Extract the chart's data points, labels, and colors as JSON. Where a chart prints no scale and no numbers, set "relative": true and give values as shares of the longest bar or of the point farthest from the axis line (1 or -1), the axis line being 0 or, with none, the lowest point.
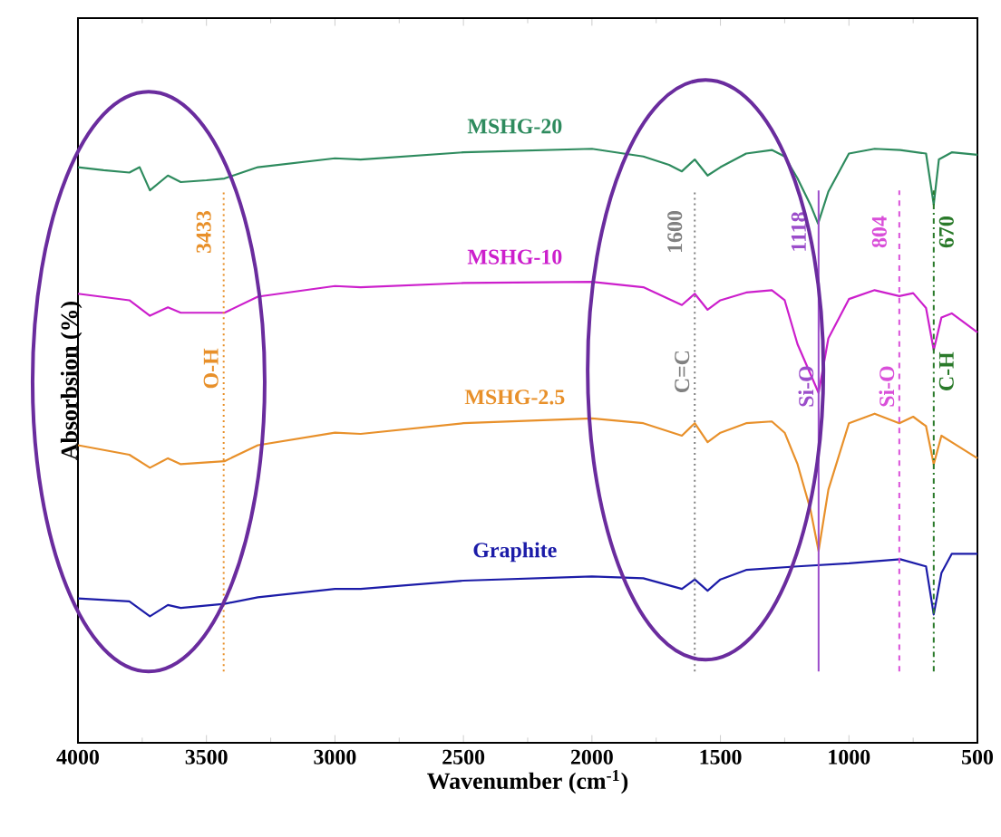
{
  "chart_data": {
    "type": "line",
    "relative": true,
    "xlabel": "Wavenumber (cm$^{-1}$)",
    "ylabel": "Absorbsion (%)",
    "xlim": [
      4000,
      500
    ],
    "xticks": [
      4000,
      3500,
      3000,
      2500,
      2000,
      1500,
      1000,
      500
    ],
    "tick_labels": "x",
    "grid": false,
    "legend": false,
    "marker": "none",
    "line_style": "solid",
    "series": [
      {
        "name": "MSHG-20",
        "color": "#2e8b5e",
        "x": [
          4000,
          3900,
          3800,
          3760,
          3720,
          3650,
          3600,
          3500,
          3430,
          3300,
          3000,
          2900,
          2500,
          2000,
          1800,
          1700,
          1650,
          1600,
          1550,
          1500,
          1400,
          1300,
          1250,
          1200,
          1150,
          1120,
          1080,
          1000,
          900,
          800,
          700,
          670,
          650,
          600,
          500
        ],
        "values": [
          0.969,
          0.964,
          0.96,
          0.969,
          0.93,
          0.955,
          0.944,
          0.947,
          0.95,
          0.969,
          0.984,
          0.982,
          0.994,
          1.0,
          0.987,
          0.973,
          0.962,
          0.982,
          0.955,
          0.969,
          0.992,
          0.998,
          0.987,
          0.95,
          0.906,
          0.874,
          0.928,
          0.992,
          1.0,
          0.998,
          0.992,
          0.906,
          0.982,
          0.994,
          0.99
        ]
      },
      {
        "name": "MSHG-10",
        "color": "#cc1fcc",
        "x": [
          4000,
          3800,
          3720,
          3650,
          3600,
          3430,
          3300,
          3000,
          2900,
          2500,
          2000,
          1800,
          1650,
          1600,
          1550,
          1500,
          1400,
          1300,
          1250,
          1200,
          1118,
          1080,
          1000,
          900,
          804,
          750,
          700,
          670,
          640,
          600,
          500
        ],
        "values": [
          0.756,
          0.745,
          0.719,
          0.733,
          0.724,
          0.724,
          0.751,
          0.769,
          0.767,
          0.774,
          0.776,
          0.767,
          0.737,
          0.756,
          0.729,
          0.745,
          0.758,
          0.762,
          0.745,
          0.671,
          0.589,
          0.681,
          0.747,
          0.762,
          0.752,
          0.757,
          0.732,
          0.661,
          0.716,
          0.723,
          0.691
        ]
      },
      {
        "name": "MSHG-2.5",
        "color": "#e8902a",
        "x": [
          4000,
          3800,
          3720,
          3650,
          3600,
          3430,
          3300,
          3000,
          2900,
          2500,
          2000,
          1800,
          1650,
          1600,
          1550,
          1500,
          1400,
          1300,
          1250,
          1200,
          1150,
          1118,
          1080,
          1000,
          900,
          804,
          750,
          700,
          670,
          640,
          600,
          500
        ],
        "values": [
          0.501,
          0.485,
          0.463,
          0.479,
          0.469,
          0.474,
          0.501,
          0.522,
          0.52,
          0.538,
          0.546,
          0.538,
          0.517,
          0.538,
          0.506,
          0.522,
          0.538,
          0.541,
          0.522,
          0.469,
          0.393,
          0.323,
          0.426,
          0.538,
          0.554,
          0.538,
          0.549,
          0.533,
          0.469,
          0.517,
          0.506,
          0.479
        ]
      },
      {
        "name": "Graphite",
        "color": "#1c1ca8",
        "x": [
          4000,
          3800,
          3720,
          3650,
          3600,
          3430,
          3300,
          3000,
          2900,
          2500,
          2000,
          1800,
          1650,
          1600,
          1550,
          1500,
          1400,
          1200,
          1000,
          800,
          700,
          670,
          640,
          600,
          500
        ],
        "values": [
          0.243,
          0.238,
          0.213,
          0.232,
          0.227,
          0.234,
          0.245,
          0.259,
          0.259,
          0.273,
          0.28,
          0.277,
          0.259,
          0.275,
          0.256,
          0.275,
          0.291,
          0.297,
          0.302,
          0.309,
          0.297,
          0.216,
          0.286,
          0.318,
          0.318
        ]
      }
    ],
    "ref_lines": [
      {
        "axis": "x",
        "value": 3433,
        "label": "3433",
        "color": "#e8902a",
        "line_style": "dotted"
      },
      {
        "axis": "x",
        "value": 1600,
        "label": "1600",
        "color": "#808080",
        "line_style": "dotted"
      },
      {
        "axis": "x",
        "value": 1118,
        "label": "1118",
        "color": "#9b4dca",
        "line_style": "solid"
      },
      {
        "axis": "x",
        "value": 804,
        "label": "804",
        "color": "#d94fd9",
        "line_style": "dashed"
      },
      {
        "axis": "x",
        "value": 670,
        "label": "670",
        "color": "#2a7a2a",
        "line_style": "dashdot"
      }
    ],
    "annotations": [
      {
        "text": "O-H",
        "x": 3433,
        "y": 0.63
      },
      {
        "text": "C=C",
        "x": 1600,
        "y": 0.625
      },
      {
        "text": "Si-O",
        "x": 1118,
        "y": 0.6
      },
      {
        "text": "Si-O",
        "x": 804,
        "y": 0.6
      },
      {
        "text": "C-H",
        "x": 670,
        "y": 0.625
      }
    ]
  }
}
